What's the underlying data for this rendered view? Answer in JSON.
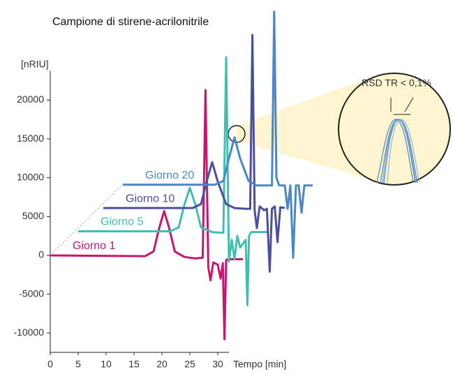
{
  "chart_data": {
    "type": "line",
    "title": "Campione di stirene-acrilonitrile",
    "y_label": "[nRIU]",
    "x_label": "Tempo [min]",
    "xlim": [
      0,
      72
    ],
    "ylim": [
      -12500,
      32000
    ],
    "xticks": [
      0,
      5,
      10,
      15,
      20,
      25,
      30
    ],
    "yticks": [
      -10000,
      -5000,
      0,
      5000,
      10000,
      15000,
      20000
    ],
    "series": [
      {
        "name": "Giorno 1",
        "color": "#c8166e",
        "x": [
          0,
          17,
          18.5,
          19.5,
          20.4,
          21.3,
          22.3,
          24,
          26,
          27.3,
          27.8,
          28.3,
          28.7,
          29.2,
          30,
          30.5,
          30.9,
          31.2,
          31.5,
          32,
          34.5
        ],
        "values": [
          0,
          -100,
          500,
          3500,
          5700,
          3500,
          500,
          -200,
          -400,
          -300,
          21300,
          -1500,
          -3200,
          -900,
          -1200,
          -3000,
          -1000,
          -10800,
          -600,
          -500,
          -500
        ]
      },
      {
        "name": "Giorno 5",
        "color": "#3fbfb0",
        "x": [
          5,
          21.5,
          23,
          24,
          25,
          26,
          27,
          29,
          31,
          31.5,
          32,
          32.5,
          33,
          33.5,
          34,
          35,
          35.3,
          35.6,
          36,
          39
        ],
        "values": [
          3100,
          3100,
          3600,
          6500,
          8700,
          6500,
          3600,
          3000,
          2900,
          25500,
          -800,
          2000,
          -500,
          2500,
          1000,
          2000,
          -6400,
          2500,
          3000,
          3000
        ]
      },
      {
        "name": "Giorno 10",
        "color": "#4a4f9e",
        "x": [
          9.5,
          25.5,
          27,
          28,
          29,
          30,
          31.5,
          33,
          35,
          35.8,
          36.2,
          36.6,
          37,
          37.5,
          38,
          38.3,
          38.8,
          39.3,
          39.7,
          40.2,
          40.7,
          41.2,
          42
        ],
        "values": [
          6100,
          6100,
          6600,
          9500,
          12000,
          9500,
          6600,
          6100,
          6000,
          6000,
          28400,
          5800,
          3500,
          6300,
          6000,
          5800,
          6000,
          -2100,
          6000,
          6300,
          1700,
          6200,
          6100
        ]
      },
      {
        "name": "Giorno 20",
        "color": "#4a86c8",
        "x": [
          13,
          29.5,
          31,
          32,
          33,
          34,
          35.5,
          37,
          39,
          39.7,
          40.1,
          40.5,
          41,
          42,
          42.5,
          43,
          43.5,
          44,
          44.5,
          45,
          45.5,
          47
        ],
        "values": [
          9100,
          9100,
          9600,
          12500,
          15200,
          12500,
          9600,
          9000,
          9000,
          9000,
          31400,
          10000,
          9000,
          9000,
          6000,
          9000,
          -300,
          9000,
          9000,
          5500,
          9000,
          9000
        ]
      }
    ],
    "inset_label": "RSD TR < 0,1%"
  }
}
